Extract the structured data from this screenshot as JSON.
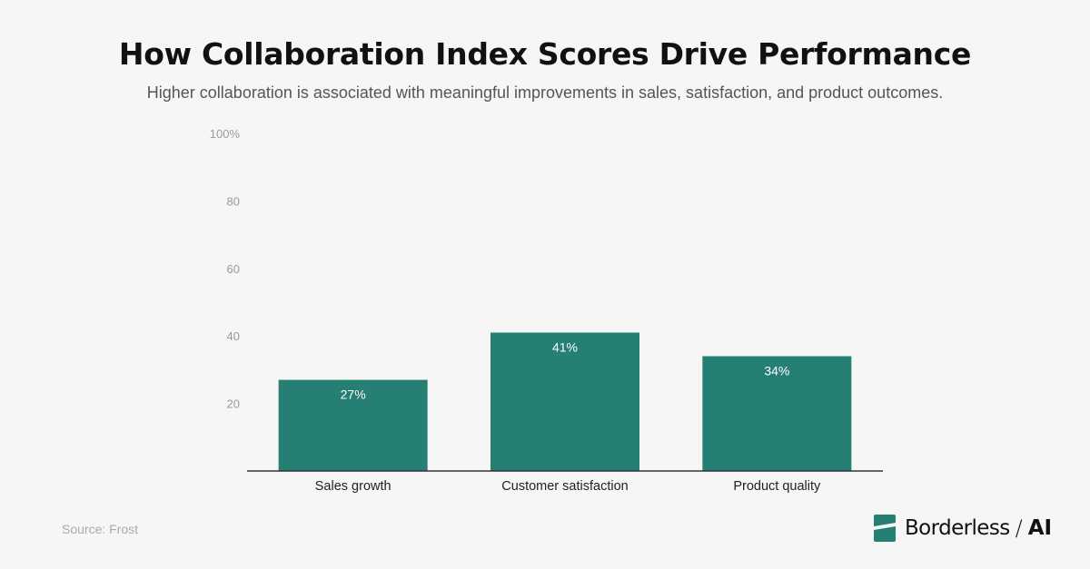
{
  "header": {
    "title": "How Collaboration Index Scores Drive Performance",
    "subtitle": "Higher collaboration is associated with meaningful improvements in sales, satisfaction, and product outcomes."
  },
  "chart_data": {
    "type": "bar",
    "categories": [
      "Sales growth",
      "Customer satisfaction",
      "Product quality"
    ],
    "values": [
      27,
      41,
      34
    ],
    "value_labels": [
      "27%",
      "41%",
      "34%"
    ],
    "ylim": [
      0,
      100
    ],
    "yticks": [
      20,
      40,
      60,
      80,
      100
    ],
    "ytick_labels": [
      "20",
      "40",
      "60",
      "80",
      "100%"
    ],
    "bar_color": "#267f73",
    "grid": false
  },
  "footer": {
    "source": "Source: Frost",
    "brand_name": "Borderless",
    "brand_separator": "/",
    "brand_suffix": "AI",
    "brand_icon": "borderless-logo-icon"
  }
}
